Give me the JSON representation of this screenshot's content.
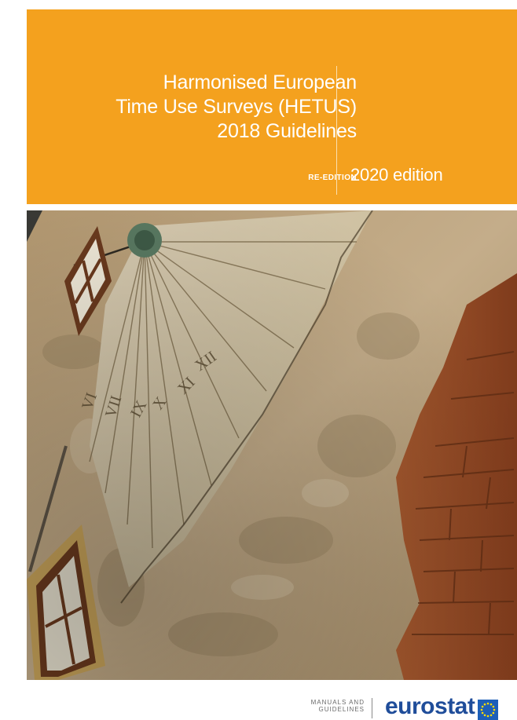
{
  "cover": {
    "title_lines": [
      "Harmonised European",
      "Time Use Surveys (HETUS)",
      "2018 Guidelines"
    ],
    "re_edition_label": "RE-EDITION",
    "edition_label": "2020 edition"
  },
  "footer": {
    "series_lines": [
      "MANUALS AND",
      "GUIDELINES"
    ],
    "brand": "eurostat"
  },
  "colors": {
    "band": "#f4a11e",
    "brand_blue": "#1f4d9a",
    "flag_blue": "#1d5fb8",
    "flag_stars": "#ffde00"
  }
}
